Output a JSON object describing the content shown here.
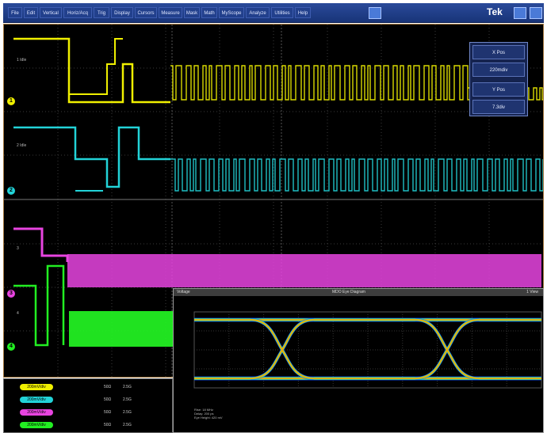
{
  "menu": [
    "File",
    "Edit",
    "Vertical",
    "Horiz/Acq",
    "Trig",
    "Display",
    "Cursors",
    "Measure",
    "Mask",
    "Math",
    "MyScope",
    "Analyze",
    "Utilities",
    "Help"
  ],
  "brand": "Tek",
  "pos_panel": {
    "h_pos_label": "X Pos",
    "h_pos_value": "220mdiv",
    "v_pos_label": "Y Pos",
    "v_pos_value": "7.3div"
  },
  "channels": [
    {
      "name": "1",
      "color": "#f0f000",
      "label": "1 Idle"
    },
    {
      "name": "2",
      "color": "#22d3d8",
      "label": "2 Idle"
    },
    {
      "name": "3",
      "color": "#e844e0",
      "label": "3"
    },
    {
      "name": "4",
      "color": "#22ee22",
      "label": "4"
    }
  ],
  "eye": {
    "title": "MDO Eye Diagram",
    "left_title": "Voltage",
    "right_title": "1 View",
    "info": [
      "Rise: 18 MHz",
      "Delay: 200 ps",
      "Eye Height: 420 mV"
    ]
  },
  "readouts": [
    {
      "color": "#f0f000",
      "scale": "200mV/div",
      "imp": "50Ω",
      "bw": "2.5G"
    },
    {
      "color": "#22d3d8",
      "scale": "200mV/div",
      "imp": "50Ω",
      "bw": "2.5G"
    },
    {
      "color": "#e844e0",
      "scale": "200mV/div",
      "imp": "50Ω",
      "bw": "2.5G"
    },
    {
      "color": "#22ee22",
      "scale": "200mV/div",
      "imp": "50Ω",
      "bw": "2.5G"
    }
  ]
}
